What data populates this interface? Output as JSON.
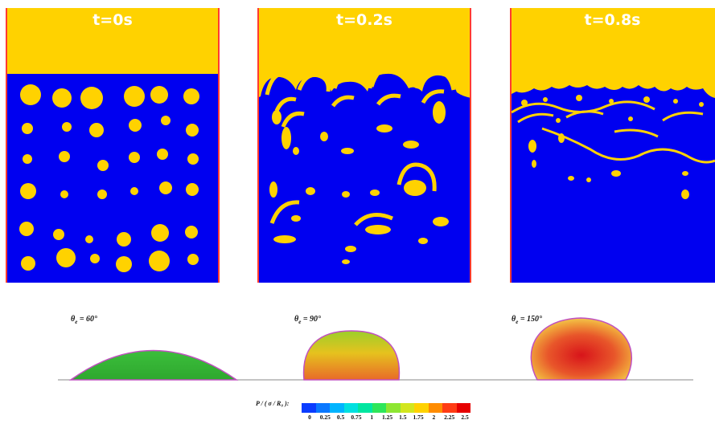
{
  "panels": [
    {
      "time_label": "t=0s"
    },
    {
      "time_label": "t=0.2s"
    },
    {
      "time_label": "t=0.8s"
    }
  ],
  "droplets": [
    {
      "theta_symbol": "θ",
      "theta_sub": "e",
      "angle": "= 60°"
    },
    {
      "theta_symbol": "θ",
      "theta_sub": "e",
      "angle": "= 90°"
    },
    {
      "theta_symbol": "θ",
      "theta_sub": "e",
      "angle": "= 150°"
    }
  ],
  "colorbar": {
    "label": "P / ( σ / R₀ ):",
    "ticks": [
      "0",
      "0.25",
      "0.5",
      "0.75",
      "1",
      "1.25",
      "1.5",
      "1.75",
      "2",
      "2.25",
      "2.5"
    ],
    "colors": [
      "#0a3cff",
      "#0a78ff",
      "#00b4ff",
      "#00e0e0",
      "#00e6a0",
      "#2ee65a",
      "#8ee632",
      "#d2e61e",
      "#ffd200",
      "#ff8c00",
      "#ff3c14",
      "#e60000"
    ]
  },
  "colors": {
    "liquid_blue": "#0000f0",
    "gas_yellow": "#ffd200",
    "wall_red": "#ff3b30"
  }
}
